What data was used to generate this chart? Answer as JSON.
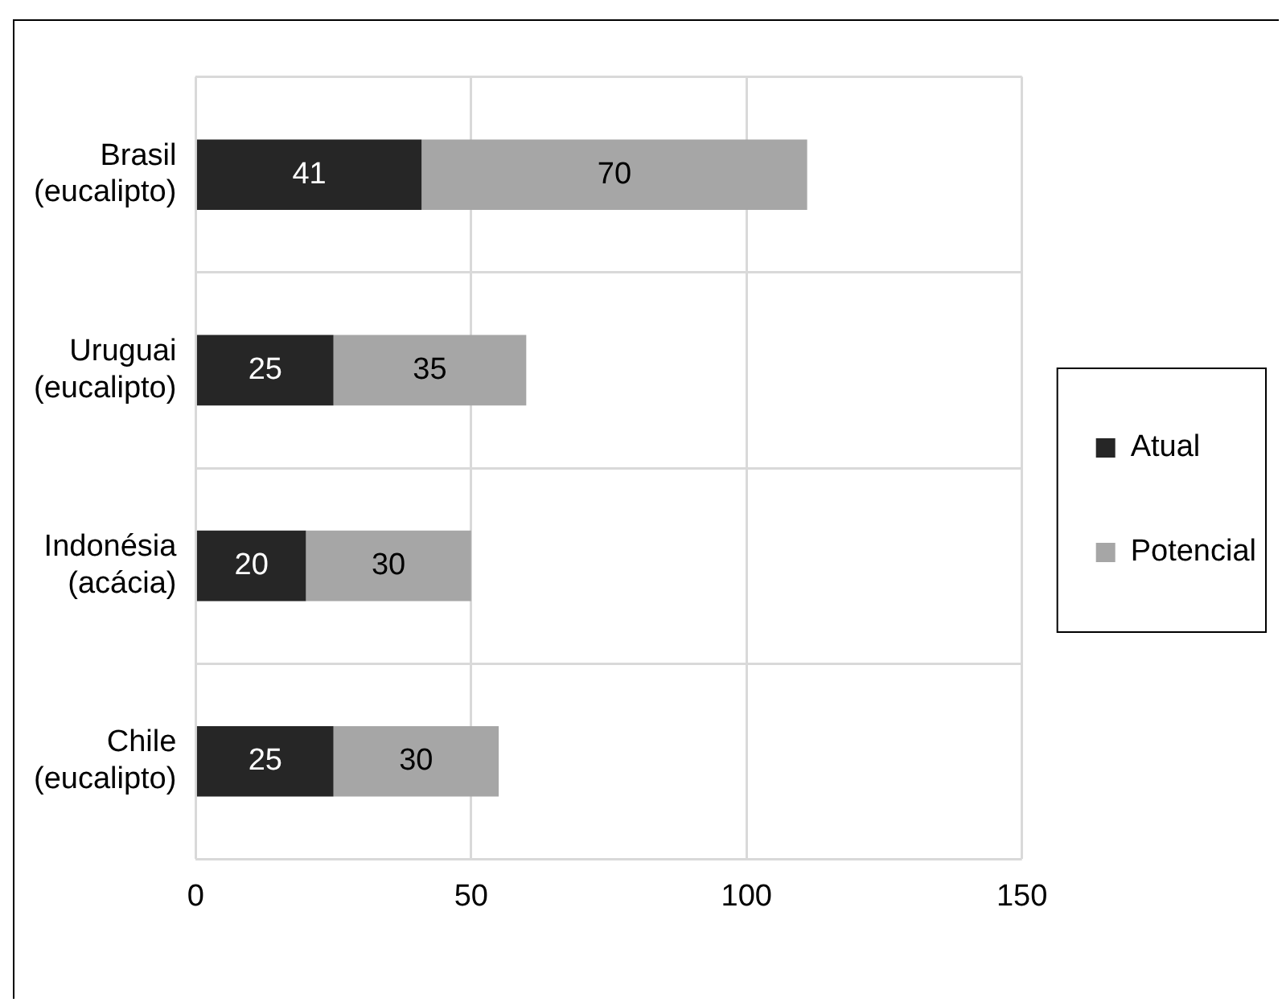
{
  "chart_data": {
    "type": "bar",
    "orientation": "horizontal",
    "stacked": true,
    "categories": [
      "Brasil\n(eucalipto)",
      "Uruguai\n(eucalipto)",
      "Indonésia\n(acácia)",
      "Chile\n(eucalipto)"
    ],
    "series": [
      {
        "name": "Atual",
        "color": "#262626",
        "values": [
          41,
          25,
          20,
          25
        ]
      },
      {
        "name": "Potencial",
        "color": "#a6a6a6",
        "values": [
          70,
          35,
          30,
          30
        ]
      }
    ],
    "xlim": [
      0,
      150
    ],
    "xticks": [
      0,
      50,
      100,
      150
    ],
    "grid": true,
    "legend": "right",
    "data_labels": true
  }
}
